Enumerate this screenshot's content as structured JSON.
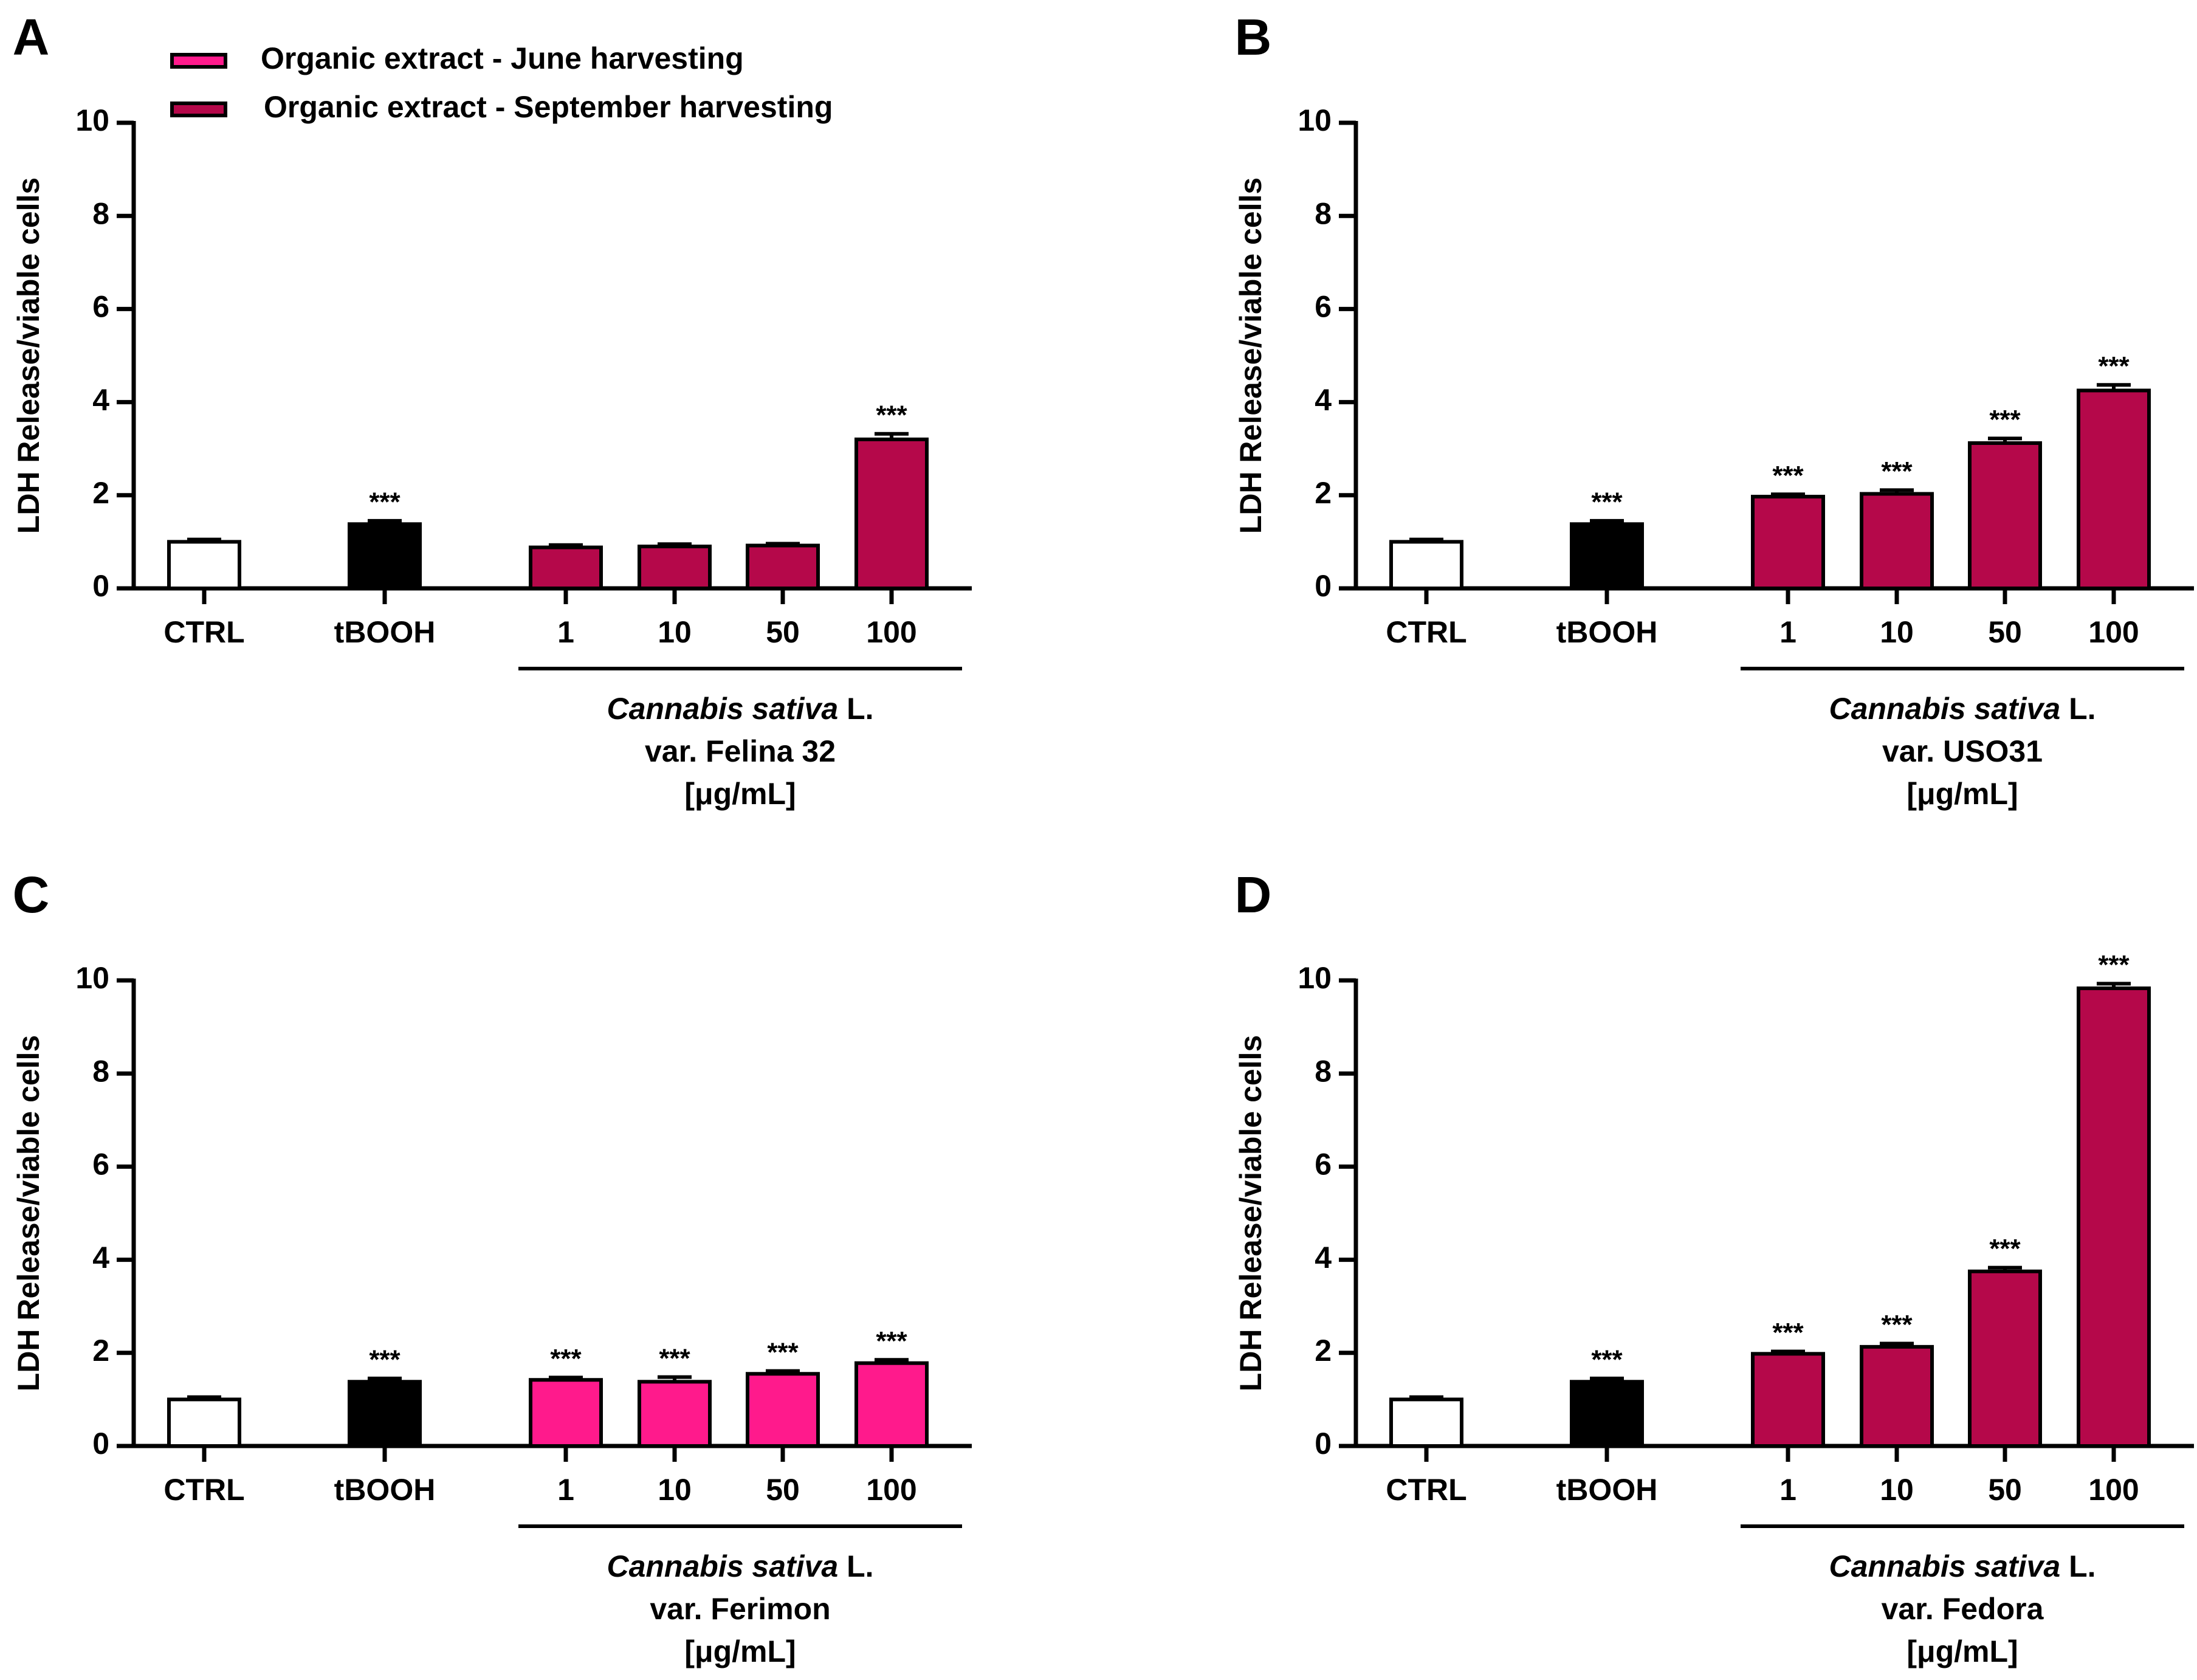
{
  "legend": [
    {
      "name": "Organic extract - June harvesting",
      "color": "#ff1a8c"
    },
    {
      "name": "Organic extract - September harvesting",
      "color": "#b5084a"
    }
  ],
  "chart_data": [
    {
      "type": "bar",
      "panel": "A",
      "ylabel": "LDH Release/viable cells",
      "categories": [
        "CTRL",
        "tBOOH",
        "1",
        "10",
        "50",
        "100"
      ],
      "values": [
        1.0,
        1.38,
        0.88,
        0.9,
        0.92,
        3.2
      ],
      "errors": [
        0.05,
        0.07,
        0.05,
        0.05,
        0.04,
        0.12
      ],
      "colors": [
        "#ffffff",
        "#000000",
        "#b5084a",
        "#b5084a",
        "#b5084a",
        "#b5084a"
      ],
      "annotations": [
        null,
        "***",
        null,
        null,
        null,
        "***"
      ],
      "group_label": {
        "species": "Cannabis sativa",
        "authority": "L.",
        "variety": "var. Felina 32",
        "unit": "[μg/mL]"
      },
      "ylim": [
        0,
        10
      ],
      "yticks": [
        0,
        2,
        4,
        6,
        8,
        10
      ]
    },
    {
      "type": "bar",
      "panel": "B",
      "ylabel": "LDH Release/viable cells",
      "categories": [
        "CTRL",
        "tBOOH",
        "1",
        "10",
        "50",
        "100"
      ],
      "values": [
        1.0,
        1.38,
        1.97,
        2.03,
        3.12,
        4.25
      ],
      "errors": [
        0.05,
        0.07,
        0.05,
        0.08,
        0.1,
        0.12
      ],
      "colors": [
        "#ffffff",
        "#000000",
        "#b5084a",
        "#b5084a",
        "#b5084a",
        "#b5084a"
      ],
      "annotations": [
        null,
        "***",
        "***",
        "***",
        "***",
        "***"
      ],
      "group_label": {
        "species": "Cannabis sativa",
        "authority": "L.",
        "variety": "var. USO31",
        "unit": "[μg/mL]"
      },
      "ylim": [
        0,
        10
      ],
      "yticks": [
        0,
        2,
        4,
        6,
        8,
        10
      ]
    },
    {
      "type": "bar",
      "panel": "C",
      "ylabel": "LDH Release/viable cells",
      "categories": [
        "CTRL",
        "tBOOH",
        "1",
        "10",
        "50",
        "100"
      ],
      "values": [
        1.0,
        1.38,
        1.42,
        1.38,
        1.55,
        1.78
      ],
      "errors": [
        0.05,
        0.07,
        0.05,
        0.1,
        0.06,
        0.07
      ],
      "colors": [
        "#ffffff",
        "#000000",
        "#ff1a8c",
        "#ff1a8c",
        "#ff1a8c",
        "#ff1a8c"
      ],
      "annotations": [
        null,
        "***",
        "***",
        "***",
        "***",
        "***"
      ],
      "group_label": {
        "species": "Cannabis sativa",
        "authority": "L.",
        "variety": "var. Ferimon",
        "unit": "[μg/mL]"
      },
      "ylim": [
        0,
        10
      ],
      "yticks": [
        0,
        2,
        4,
        6,
        8,
        10
      ]
    },
    {
      "type": "bar",
      "panel": "D",
      "ylabel": "LDH Release/viable cells",
      "categories": [
        "CTRL",
        "tBOOH",
        "1",
        "10",
        "50",
        "100"
      ],
      "values": [
        1.0,
        1.38,
        1.98,
        2.13,
        3.75,
        9.83
      ],
      "errors": [
        0.05,
        0.07,
        0.05,
        0.07,
        0.08,
        0.1
      ],
      "colors": [
        "#ffffff",
        "#000000",
        "#b5084a",
        "#b5084a",
        "#b5084a",
        "#b5084a"
      ],
      "annotations": [
        null,
        "***",
        "***",
        "***",
        "***",
        "***"
      ],
      "group_label": {
        "species": "Cannabis sativa",
        "authority": "L.",
        "variety": "var. Fedora",
        "unit": "[μg/mL]"
      },
      "ylim": [
        0,
        10
      ],
      "yticks": [
        0,
        2,
        4,
        6,
        8,
        10
      ]
    }
  ]
}
